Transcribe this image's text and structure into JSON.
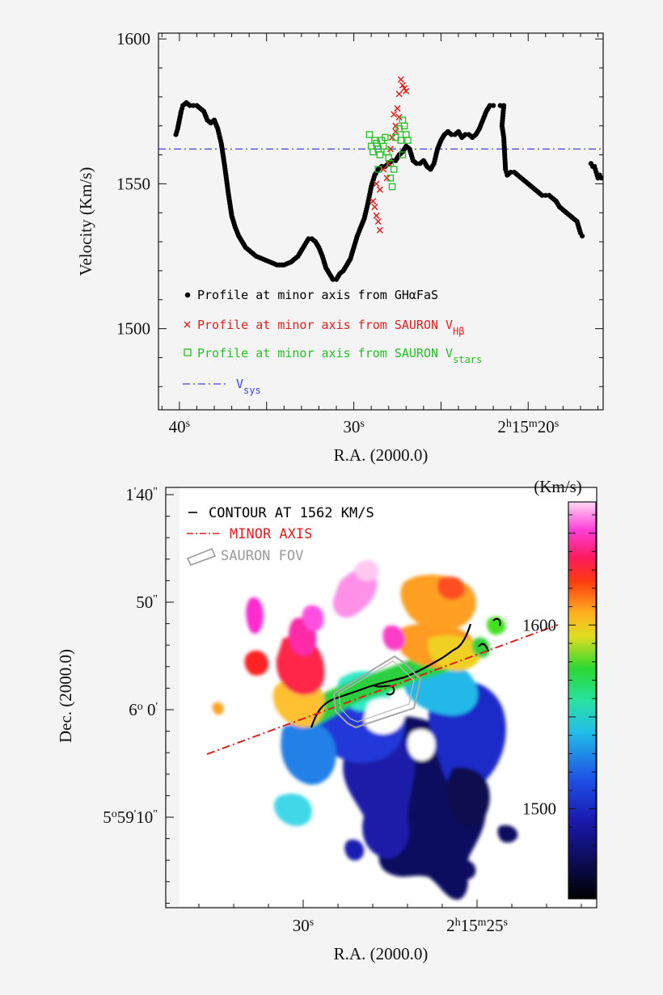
{
  "chart_data": [
    {
      "type": "scatter",
      "title": "",
      "xlabel": "R.A. (2000.0)",
      "ylabel": "Velocity (Km/s)",
      "x_units": "RA seconds of time (2h15m + x s)",
      "xlim": [
        41.2,
        15.7
      ],
      "ylim": [
        1472,
        1602
      ],
      "x_ticks": [
        {
          "v": 40,
          "label": "40",
          "sup": "s"
        },
        {
          "v": 30,
          "label": "30",
          "sup": "s"
        },
        {
          "v": 20,
          "label": "2",
          "sup": "h",
          "label2": "15",
          "sup2": "m",
          "label3": "20",
          "sup3": "s"
        }
      ],
      "y_ticks": [
        1500,
        1550,
        1600
      ],
      "vsys": 1562,
      "legend": {
        "placement": "bottom-left",
        "entries": [
          {
            "marker": "•",
            "text": "Profile at minor axis from GHαFaS",
            "color": "#000000"
          },
          {
            "marker": "×",
            "text": "Profile at minor axis from SAURON V",
            "sub": "Hβ",
            "color": "#e02020"
          },
          {
            "marker": "□",
            "text": "Profile at minor axis from SAURON V",
            "sub": "stars",
            "color": "#22c022"
          },
          {
            "marker": "-·-",
            "text": "V",
            "sub": "sys",
            "color": "#4040e0"
          }
        ]
      },
      "series": [
        {
          "name": "Profile at minor axis from GHαFaS",
          "color": "#000000",
          "marker": "dot",
          "segments": [
            [
              [
                40.2,
                1567
              ],
              [
                40.1,
                1569
              ],
              [
                40.0,
                1572
              ],
              [
                39.9,
                1575
              ],
              [
                39.8,
                1577
              ],
              [
                39.6,
                1578
              ],
              [
                39.4,
                1577
              ],
              [
                39.2,
                1577
              ],
              [
                39.0,
                1577
              ],
              [
                38.8,
                1576
              ],
              [
                38.6,
                1575
              ],
              [
                38.4,
                1572
              ],
              [
                38.2,
                1571
              ],
              [
                38.0,
                1572
              ],
              [
                37.8,
                1569
              ],
              [
                37.6,
                1564
              ],
              [
                37.4,
                1556
              ],
              [
                37.2,
                1547
              ],
              [
                37.0,
                1539
              ],
              [
                36.8,
                1535
              ],
              [
                36.6,
                1532
              ],
              [
                36.4,
                1530
              ],
              [
                36.2,
                1528
              ],
              [
                36.0,
                1527
              ],
              [
                35.6,
                1525
              ],
              [
                35.2,
                1524
              ],
              [
                34.8,
                1523
              ],
              [
                34.4,
                1522
              ],
              [
                34.0,
                1522
              ],
              [
                33.6,
                1523
              ],
              [
                33.2,
                1525
              ],
              [
                33.0,
                1527
              ],
              [
                32.8,
                1529
              ],
              [
                32.6,
                1531
              ],
              [
                32.4,
                1531
              ],
              [
                32.2,
                1530
              ],
              [
                32.0,
                1528
              ],
              [
                31.8,
                1525
              ],
              [
                31.6,
                1521
              ],
              [
                31.4,
                1519
              ],
              [
                31.2,
                1517
              ],
              [
                31.0,
                1517
              ],
              [
                30.8,
                1519
              ],
              [
                30.6,
                1520
              ],
              [
                30.4,
                1522
              ],
              [
                30.2,
                1524
              ],
              [
                30.0,
                1528
              ],
              [
                29.8,
                1532
              ],
              [
                29.6,
                1535
              ],
              [
                29.4,
                1538
              ],
              [
                29.2,
                1543
              ],
              [
                29.0,
                1549
              ],
              [
                28.8,
                1553
              ],
              [
                28.6,
                1555
              ],
              [
                28.4,
                1556
              ],
              [
                28.2,
                1556
              ],
              [
                28.0,
                1557
              ],
              [
                27.8,
                1558
              ],
              [
                27.6,
                1558
              ],
              [
                27.4,
                1560
              ],
              [
                27.2,
                1561
              ],
              [
                27.0,
                1563
              ],
              [
                26.8,
                1562
              ],
              [
                26.6,
                1558
              ],
              [
                26.4,
                1557
              ],
              [
                26.2,
                1557
              ],
              [
                26.0,
                1558
              ],
              [
                25.8,
                1556
              ],
              [
                25.6,
                1555
              ],
              [
                25.4,
                1557
              ],
              [
                25.2,
                1562
              ],
              [
                25.0,
                1565
              ],
              [
                24.8,
                1567
              ],
              [
                24.6,
                1568
              ],
              [
                24.4,
                1567
              ],
              [
                24.2,
                1567
              ],
              [
                24.0,
                1568
              ],
              [
                23.8,
                1566
              ],
              [
                23.6,
                1567
              ],
              [
                23.4,
                1567
              ],
              [
                23.2,
                1566
              ],
              [
                23.0,
                1567
              ],
              [
                22.8,
                1569
              ],
              [
                22.6,
                1572
              ],
              [
                22.4,
                1575
              ],
              [
                22.2,
                1577
              ],
              [
                22.0,
                1577
              ]
            ],
            [
              [
                21.6,
                1577
              ],
              [
                21.4,
                1577
              ],
              [
                21.5,
                1570
              ],
              [
                21.4,
                1566
              ],
              [
                21.3,
                1555
              ],
              [
                21.2,
                1553
              ],
              [
                21.0,
                1554
              ],
              [
                20.8,
                1554
              ],
              [
                20.6,
                1553
              ],
              [
                20.4,
                1552
              ],
              [
                20.2,
                1551
              ],
              [
                20.0,
                1550
              ],
              [
                19.8,
                1549
              ],
              [
                19.6,
                1548
              ],
              [
                19.4,
                1547
              ],
              [
                19.2,
                1546
              ],
              [
                19.0,
                1546
              ],
              [
                18.8,
                1546
              ],
              [
                18.6,
                1545
              ],
              [
                18.4,
                1544
              ],
              [
                18.2,
                1542
              ],
              [
                18.0,
                1541
              ],
              [
                17.8,
                1540
              ],
              [
                17.6,
                1539
              ],
              [
                17.4,
                1538
              ],
              [
                17.2,
                1537
              ],
              [
                17.0,
                1533
              ],
              [
                16.9,
                1532
              ]
            ],
            [
              [
                16.4,
                1557
              ],
              [
                16.3,
                1556
              ],
              [
                16.2,
                1556
              ],
              [
                16.1,
                1554
              ],
              [
                16.0,
                1552
              ],
              [
                15.9,
                1553
              ],
              [
                15.8,
                1552
              ],
              [
                15.6,
                1552
              ],
              [
                15.4,
                1550
              ],
              [
                15.3,
                1549
              ]
            ]
          ]
        },
        {
          "name": "Profile at minor axis from SAURON V Hβ",
          "color": "#e02020",
          "marker": "x",
          "points": [
            [
              28.9,
              1544
            ],
            [
              28.8,
              1542
            ],
            [
              28.7,
              1539
            ],
            [
              28.6,
              1537
            ],
            [
              28.5,
              1534
            ],
            [
              28.7,
              1550
            ],
            [
              28.5,
              1548
            ],
            [
              28.3,
              1555
            ],
            [
              28.1,
              1552
            ],
            [
              28.0,
              1557
            ],
            [
              27.9,
              1562
            ],
            [
              27.8,
              1566
            ],
            [
              27.6,
              1570
            ],
            [
              27.7,
              1574
            ],
            [
              27.5,
              1576
            ],
            [
              27.4,
              1581
            ],
            [
              27.3,
              1586
            ],
            [
              27.2,
              1584
            ],
            [
              27.1,
              1583
            ],
            [
              27.0,
              1582
            ],
            [
              27.4,
              1573
            ],
            [
              27.6,
              1568
            ]
          ]
        },
        {
          "name": "Profile at minor axis from SAURON V stars",
          "color": "#22c022",
          "marker": "square",
          "points": [
            [
              29.1,
              1567
            ],
            [
              29.0,
              1563
            ],
            [
              28.9,
              1561
            ],
            [
              28.8,
              1565
            ],
            [
              28.7,
              1564
            ],
            [
              28.6,
              1562
            ],
            [
              28.5,
              1560
            ],
            [
              28.4,
              1565
            ],
            [
              28.3,
              1563
            ],
            [
              28.2,
              1566
            ],
            [
              28.1,
              1561
            ],
            [
              28.0,
              1559
            ],
            [
              27.9,
              1557
            ],
            [
              27.8,
              1549
            ],
            [
              27.9,
              1552
            ],
            [
              27.7,
              1555
            ],
            [
              27.6,
              1566
            ],
            [
              27.4,
              1569
            ],
            [
              27.3,
              1565
            ],
            [
              27.2,
              1572
            ],
            [
              27.1,
              1570
            ],
            [
              27.0,
              1567
            ],
            [
              26.9,
              1565
            ],
            [
              27.2,
              1560
            ],
            [
              28.6,
              1555
            ]
          ]
        }
      ]
    },
    {
      "type": "heatmap",
      "title": "",
      "xlabel": "R.A. (2000.0)",
      "ylabel": "Dec. (2000.0)",
      "x_ticks": [
        {
          "label": "30",
          "sup": "s"
        },
        {
          "label": "2",
          "sup": "h",
          "label2": "15",
          "sup2": "m",
          "label3": "25",
          "sup3": "s"
        }
      ],
      "y_ticks": [
        {
          "label": "1",
          "sup": "'",
          "label2": "40",
          "sup2": "\""
        },
        {
          "label": "50",
          "sup": "\""
        },
        {
          "label": "6",
          "sup": "o",
          "label2": " 0",
          "sup2": "'"
        },
        {
          "label": "5",
          "sup": "o",
          "label2": "59",
          "sup2": "'",
          "label3": "10",
          "sup3": "\""
        }
      ],
      "colorbar": {
        "label": "(Km/s)",
        "ticks": [
          1500,
          1600
        ],
        "range": [
          1451,
          1667
        ]
      },
      "legend": {
        "placement": "top-left",
        "entries": [
          {
            "marker": "—",
            "text": "CONTOUR AT 1562 KM/S",
            "color": "#000000"
          },
          {
            "marker": "-·-",
            "text": "MINOR AXIS",
            "color": "#e02020"
          },
          {
            "marker": "box",
            "text": "SAURON FOV",
            "color": "#999999"
          }
        ]
      },
      "contour_level": 1562
    }
  ]
}
